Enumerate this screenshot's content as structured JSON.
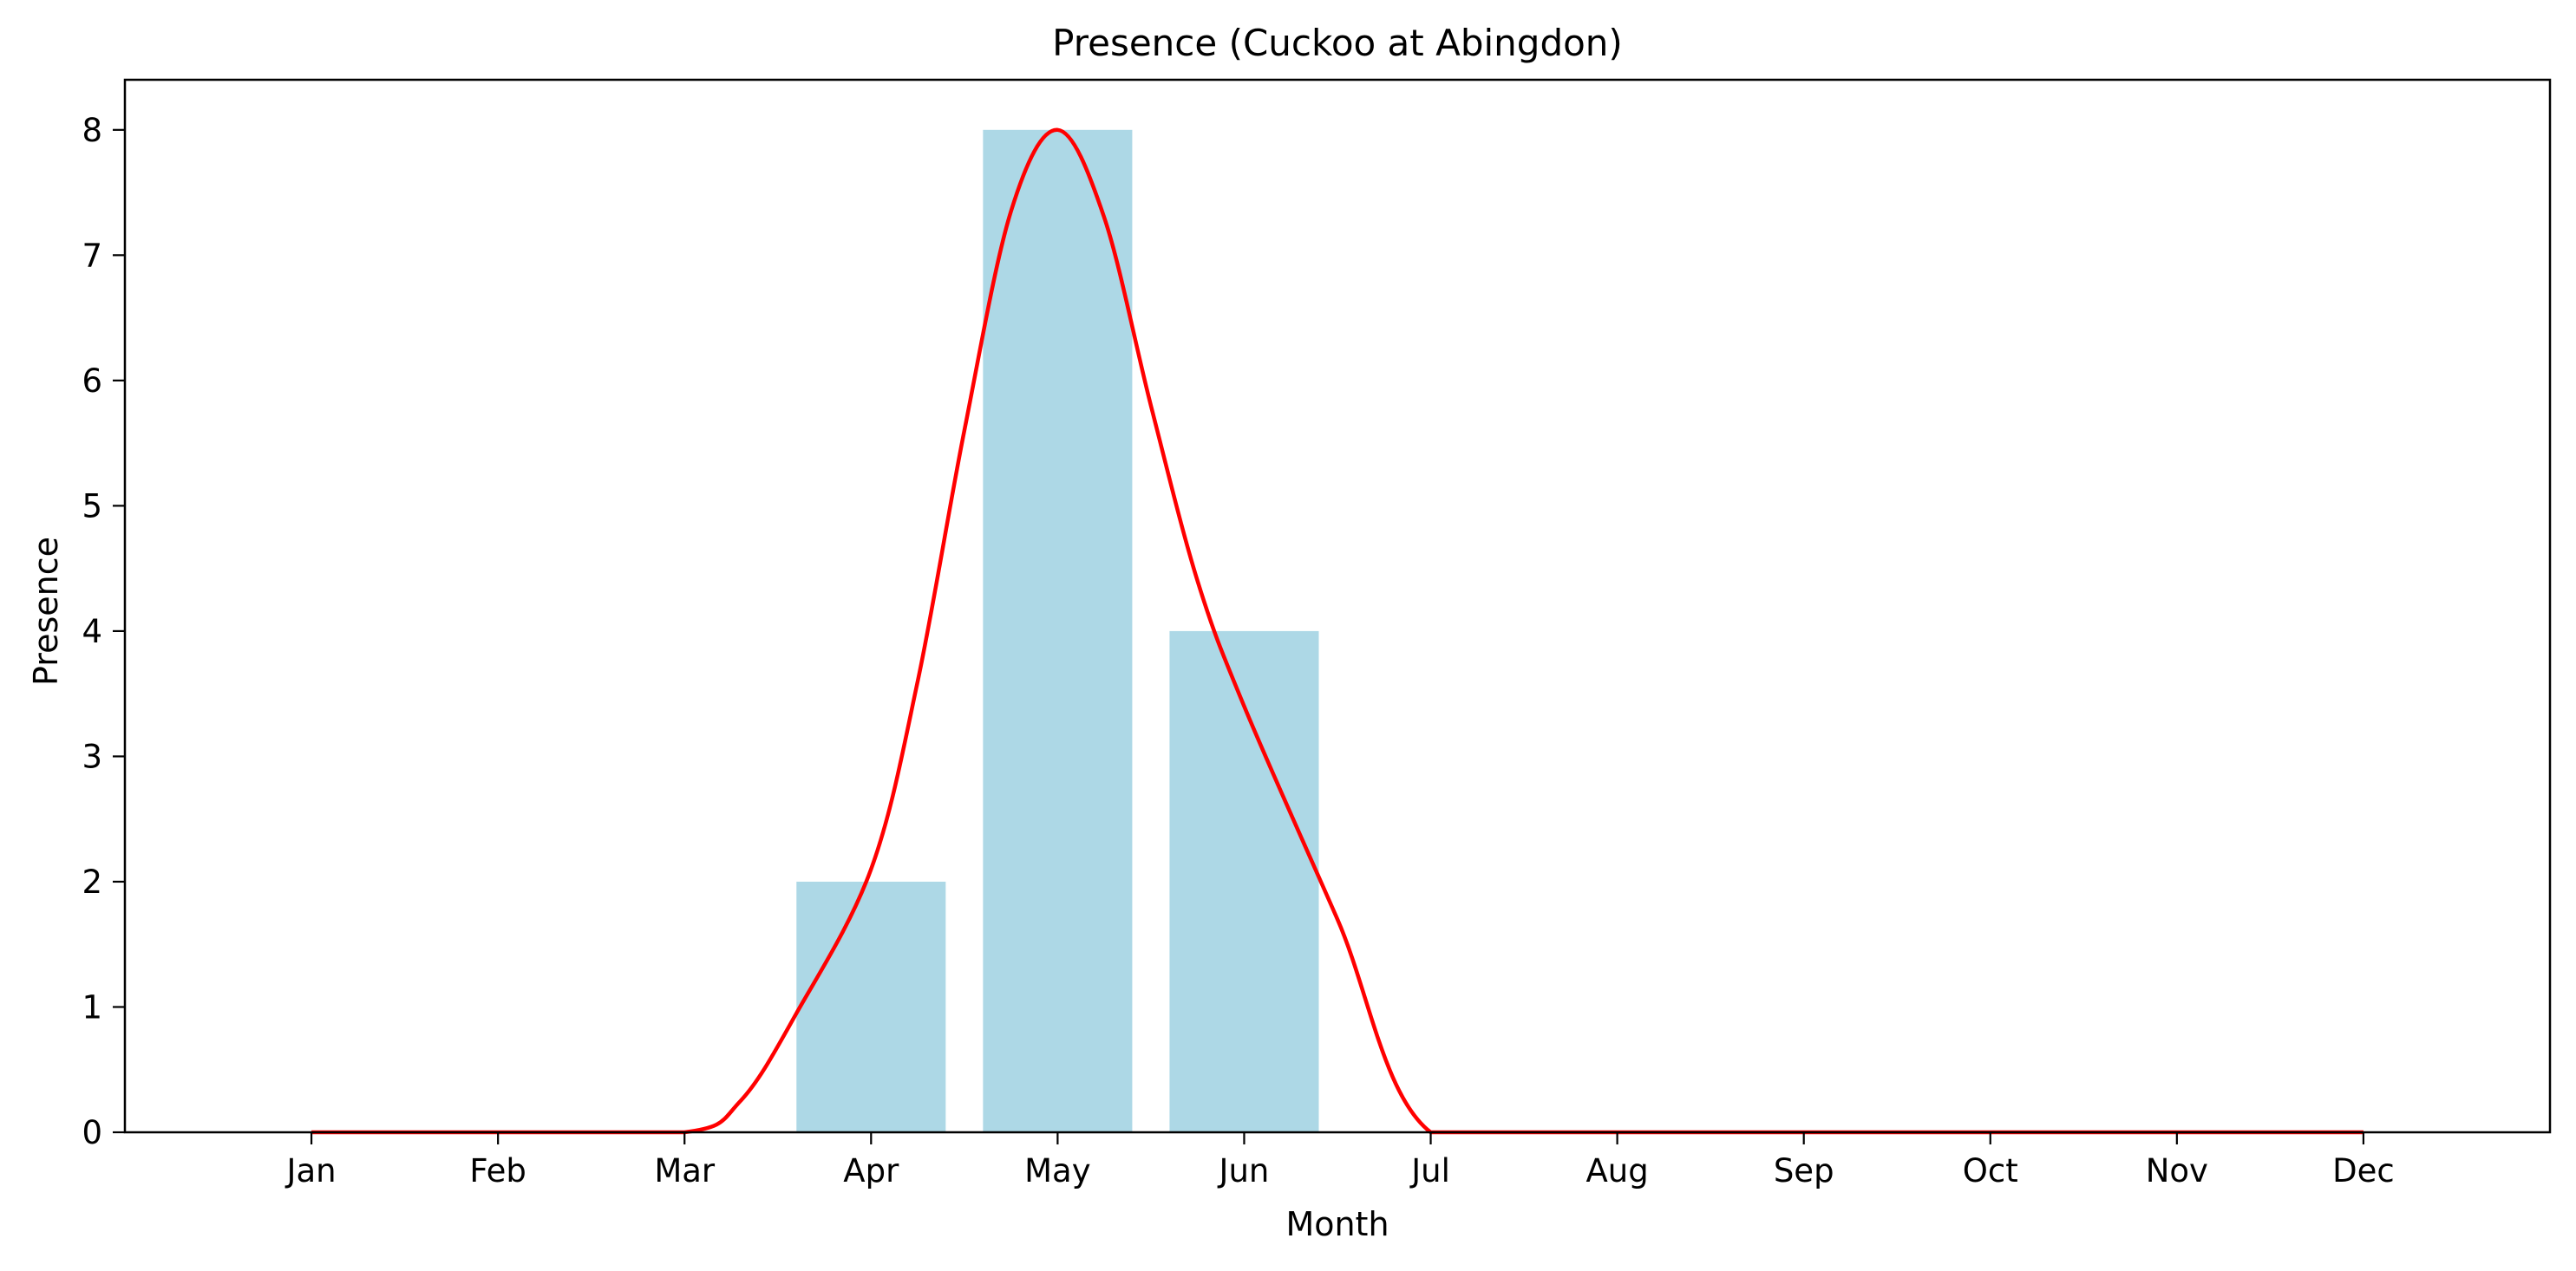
{
  "chart_data": {
    "type": "bar",
    "title": "Presence (Cuckoo at Abingdon)",
    "xlabel": "Month",
    "ylabel": "Presence",
    "categories": [
      "Jan",
      "Feb",
      "Mar",
      "Apr",
      "May",
      "Jun",
      "Jul",
      "Aug",
      "Sep",
      "Oct",
      "Nov",
      "Dec"
    ],
    "values": [
      0,
      0,
      0,
      2,
      8,
      4,
      0,
      0,
      0,
      0,
      0,
      0
    ],
    "ylim": [
      0,
      8.4
    ],
    "yticks": [
      "0",
      "1",
      "2",
      "3",
      "4",
      "5",
      "6",
      "7",
      "8"
    ],
    "grid": false,
    "legend": "none",
    "smooth_line": {
      "type": "line",
      "color": "#ff0000",
      "points": [
        [
          1,
          0
        ],
        [
          2,
          0
        ],
        [
          3,
          0
        ],
        [
          3.3,
          0.25
        ],
        [
          3.6,
          0.95
        ],
        [
          4,
          2.1
        ],
        [
          4.25,
          3.6
        ],
        [
          4.5,
          5.6
        ],
        [
          4.75,
          7.35
        ],
        [
          5,
          8
        ],
        [
          5.25,
          7.3
        ],
        [
          5.5,
          5.8
        ],
        [
          5.75,
          4.4
        ],
        [
          6,
          3.4
        ],
        [
          6.5,
          1.7
        ],
        [
          7,
          0
        ],
        [
          8,
          0
        ],
        [
          9,
          0
        ],
        [
          10,
          0
        ],
        [
          11,
          0
        ],
        [
          12,
          0
        ]
      ]
    },
    "colors": {
      "bar": "#add8e6",
      "line": "#ff0000"
    }
  }
}
